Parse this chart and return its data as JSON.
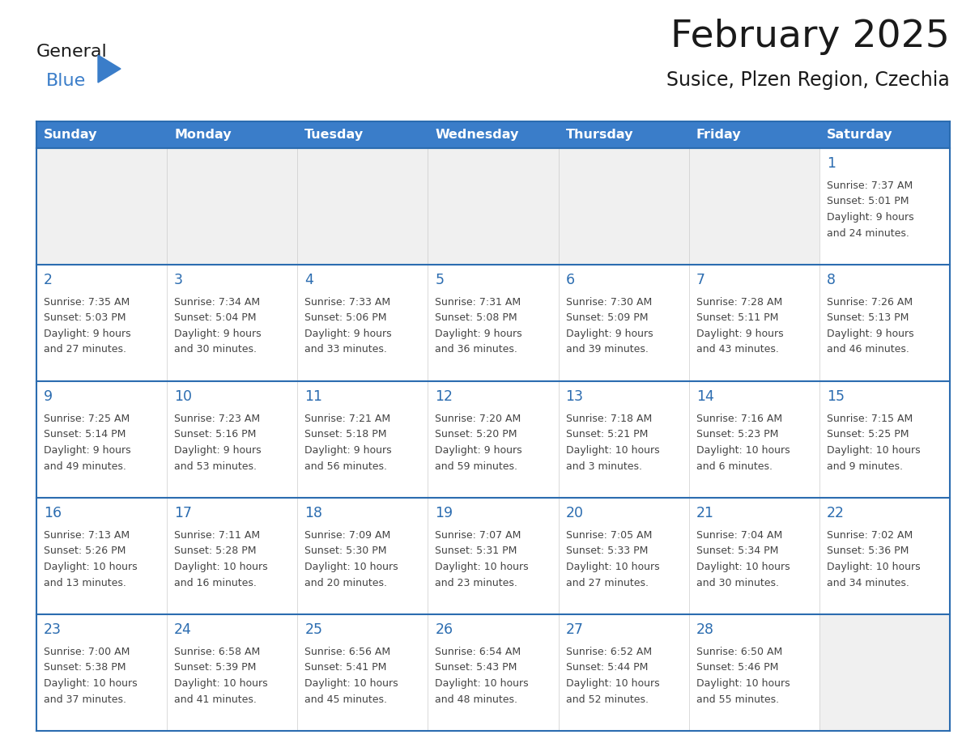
{
  "title": "February 2025",
  "subtitle": "Susice, Plzen Region, Czechia",
  "header_color": "#3A7DC9",
  "header_text_color": "#FFFFFF",
  "cell_bg_color": "#FFFFFF",
  "cell_bg_empty": "#f0f0f0",
  "cell_border_color": "#2B6CB0",
  "day_number_color": "#2B6CB0",
  "text_color": "#444444",
  "days_of_week": [
    "Sunday",
    "Monday",
    "Tuesday",
    "Wednesday",
    "Thursday",
    "Friday",
    "Saturday"
  ],
  "calendar_data": [
    [
      null,
      null,
      null,
      null,
      null,
      null,
      {
        "day": "1",
        "sunrise": "7:37 AM",
        "sunset": "5:01 PM",
        "daylight_line1": "Daylight: 9 hours",
        "daylight_line2": "and 24 minutes."
      }
    ],
    [
      {
        "day": "2",
        "sunrise": "7:35 AM",
        "sunset": "5:03 PM",
        "daylight_line1": "Daylight: 9 hours",
        "daylight_line2": "and 27 minutes."
      },
      {
        "day": "3",
        "sunrise": "7:34 AM",
        "sunset": "5:04 PM",
        "daylight_line1": "Daylight: 9 hours",
        "daylight_line2": "and 30 minutes."
      },
      {
        "day": "4",
        "sunrise": "7:33 AM",
        "sunset": "5:06 PM",
        "daylight_line1": "Daylight: 9 hours",
        "daylight_line2": "and 33 minutes."
      },
      {
        "day": "5",
        "sunrise": "7:31 AM",
        "sunset": "5:08 PM",
        "daylight_line1": "Daylight: 9 hours",
        "daylight_line2": "and 36 minutes."
      },
      {
        "day": "6",
        "sunrise": "7:30 AM",
        "sunset": "5:09 PM",
        "daylight_line1": "Daylight: 9 hours",
        "daylight_line2": "and 39 minutes."
      },
      {
        "day": "7",
        "sunrise": "7:28 AM",
        "sunset": "5:11 PM",
        "daylight_line1": "Daylight: 9 hours",
        "daylight_line2": "and 43 minutes."
      },
      {
        "day": "8",
        "sunrise": "7:26 AM",
        "sunset": "5:13 PM",
        "daylight_line1": "Daylight: 9 hours",
        "daylight_line2": "and 46 minutes."
      }
    ],
    [
      {
        "day": "9",
        "sunrise": "7:25 AM",
        "sunset": "5:14 PM",
        "daylight_line1": "Daylight: 9 hours",
        "daylight_line2": "and 49 minutes."
      },
      {
        "day": "10",
        "sunrise": "7:23 AM",
        "sunset": "5:16 PM",
        "daylight_line1": "Daylight: 9 hours",
        "daylight_line2": "and 53 minutes."
      },
      {
        "day": "11",
        "sunrise": "7:21 AM",
        "sunset": "5:18 PM",
        "daylight_line1": "Daylight: 9 hours",
        "daylight_line2": "and 56 minutes."
      },
      {
        "day": "12",
        "sunrise": "7:20 AM",
        "sunset": "5:20 PM",
        "daylight_line1": "Daylight: 9 hours",
        "daylight_line2": "and 59 minutes."
      },
      {
        "day": "13",
        "sunrise": "7:18 AM",
        "sunset": "5:21 PM",
        "daylight_line1": "Daylight: 10 hours",
        "daylight_line2": "and 3 minutes."
      },
      {
        "day": "14",
        "sunrise": "7:16 AM",
        "sunset": "5:23 PM",
        "daylight_line1": "Daylight: 10 hours",
        "daylight_line2": "and 6 minutes."
      },
      {
        "day": "15",
        "sunrise": "7:15 AM",
        "sunset": "5:25 PM",
        "daylight_line1": "Daylight: 10 hours",
        "daylight_line2": "and 9 minutes."
      }
    ],
    [
      {
        "day": "16",
        "sunrise": "7:13 AM",
        "sunset": "5:26 PM",
        "daylight_line1": "Daylight: 10 hours",
        "daylight_line2": "and 13 minutes."
      },
      {
        "day": "17",
        "sunrise": "7:11 AM",
        "sunset": "5:28 PM",
        "daylight_line1": "Daylight: 10 hours",
        "daylight_line2": "and 16 minutes."
      },
      {
        "day": "18",
        "sunrise": "7:09 AM",
        "sunset": "5:30 PM",
        "daylight_line1": "Daylight: 10 hours",
        "daylight_line2": "and 20 minutes."
      },
      {
        "day": "19",
        "sunrise": "7:07 AM",
        "sunset": "5:31 PM",
        "daylight_line1": "Daylight: 10 hours",
        "daylight_line2": "and 23 minutes."
      },
      {
        "day": "20",
        "sunrise": "7:05 AM",
        "sunset": "5:33 PM",
        "daylight_line1": "Daylight: 10 hours",
        "daylight_line2": "and 27 minutes."
      },
      {
        "day": "21",
        "sunrise": "7:04 AM",
        "sunset": "5:34 PM",
        "daylight_line1": "Daylight: 10 hours",
        "daylight_line2": "and 30 minutes."
      },
      {
        "day": "22",
        "sunrise": "7:02 AM",
        "sunset": "5:36 PM",
        "daylight_line1": "Daylight: 10 hours",
        "daylight_line2": "and 34 minutes."
      }
    ],
    [
      {
        "day": "23",
        "sunrise": "7:00 AM",
        "sunset": "5:38 PM",
        "daylight_line1": "Daylight: 10 hours",
        "daylight_line2": "and 37 minutes."
      },
      {
        "day": "24",
        "sunrise": "6:58 AM",
        "sunset": "5:39 PM",
        "daylight_line1": "Daylight: 10 hours",
        "daylight_line2": "and 41 minutes."
      },
      {
        "day": "25",
        "sunrise": "6:56 AM",
        "sunset": "5:41 PM",
        "daylight_line1": "Daylight: 10 hours",
        "daylight_line2": "and 45 minutes."
      },
      {
        "day": "26",
        "sunrise": "6:54 AM",
        "sunset": "5:43 PM",
        "daylight_line1": "Daylight: 10 hours",
        "daylight_line2": "and 48 minutes."
      },
      {
        "day": "27",
        "sunrise": "6:52 AM",
        "sunset": "5:44 PM",
        "daylight_line1": "Daylight: 10 hours",
        "daylight_line2": "and 52 minutes."
      },
      {
        "day": "28",
        "sunrise": "6:50 AM",
        "sunset": "5:46 PM",
        "daylight_line1": "Daylight: 10 hours",
        "daylight_line2": "and 55 minutes."
      },
      null
    ]
  ],
  "logo_text_general": "General",
  "logo_text_blue": "Blue",
  "logo_color_general": "#1a1a1a",
  "logo_color_blue": "#3A7DC9",
  "logo_triangle_color": "#3A7DC9",
  "figsize": [
    11.88,
    9.18
  ],
  "dpi": 100
}
